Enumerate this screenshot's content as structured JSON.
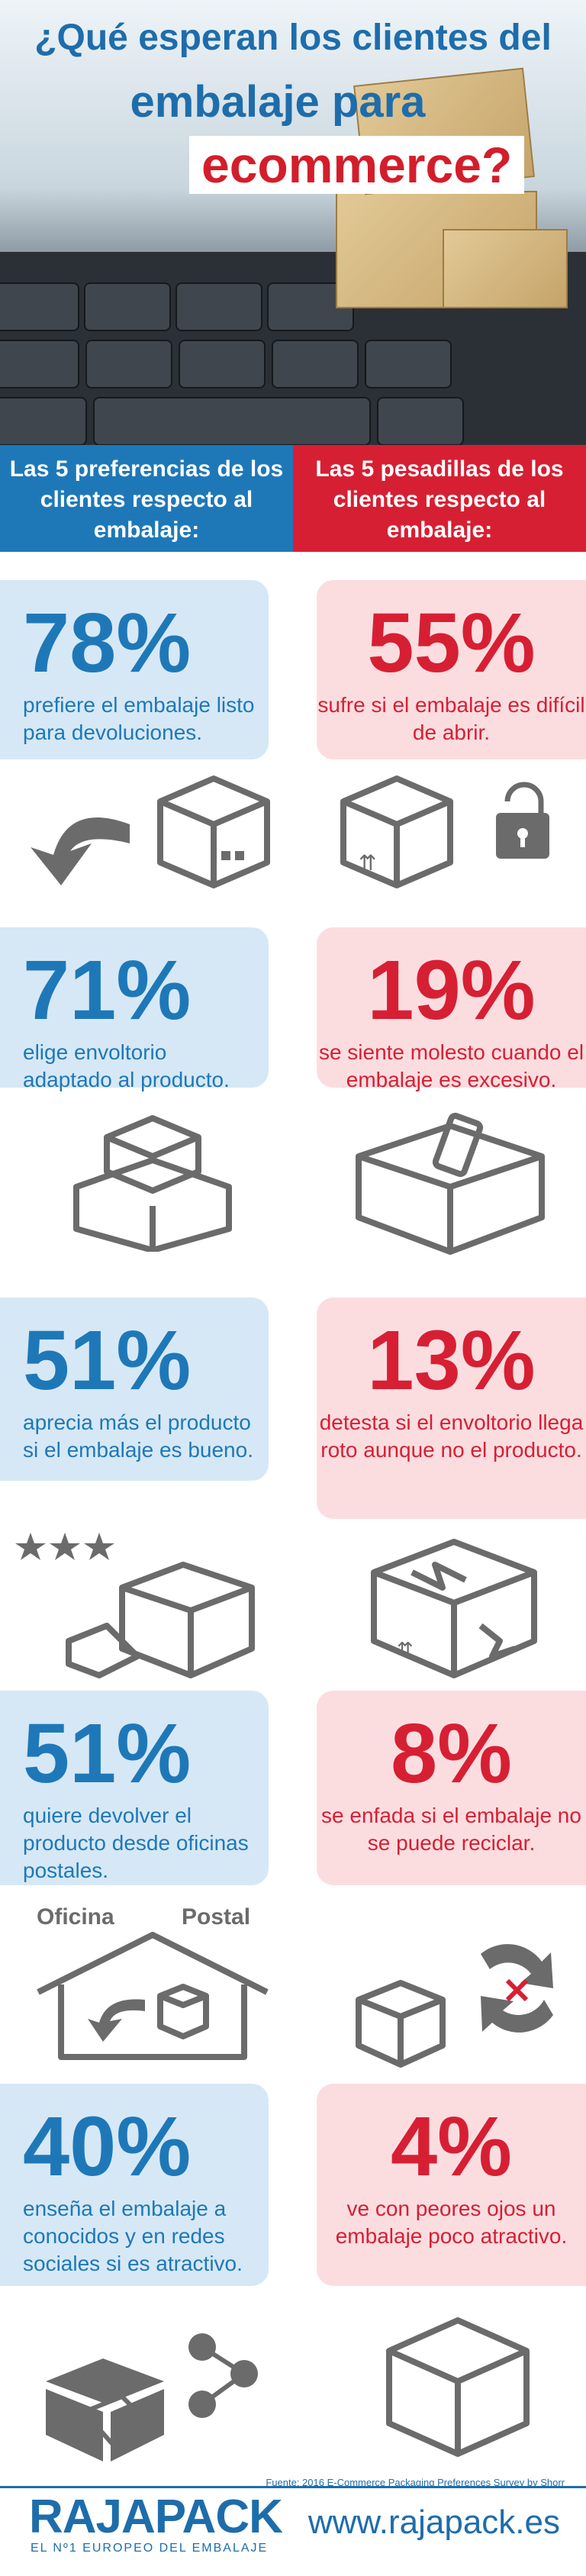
{
  "header": {
    "line1": "¿Qué esperan los clientes del",
    "line2": "embalaje para",
    "line3": "ecommerce?"
  },
  "columns": {
    "left_heading": "Las 5 preferencias de los clientes respecto al embalaje:",
    "right_heading": "Las 5 pesadillas de los clientes respecto al embalaje:"
  },
  "rows": [
    {
      "left": {
        "pct": "78%",
        "text": "prefiere el embalaje listo para devoluciones."
      },
      "right": {
        "pct": "55%",
        "text": "sufre si el embalaje es difícil de abrir."
      }
    },
    {
      "left": {
        "pct": "71%",
        "text": "elige envoltorio adaptado al producto."
      },
      "right": {
        "pct": "19%",
        "text": "se siente molesto cuando el embalaje es excesivo."
      }
    },
    {
      "left": {
        "pct": "51%",
        "text": "aprecia más el producto si el embalaje es bueno."
      },
      "right": {
        "pct": "13%",
        "text": "detesta si el envoltorio llega roto aunque no el producto."
      }
    },
    {
      "left": {
        "pct": "51%",
        "text": "quiere devolver el producto desde oficinas postales."
      },
      "right": {
        "pct": "8%",
        "text": "se enfada si el embalaje no se puede reciclar."
      }
    },
    {
      "left": {
        "pct": "40%",
        "text": "enseña el embalaje a conocidos y en redes sociales si es atractivo."
      },
      "right": {
        "pct": "4%",
        "text": "ve con peores ojos un embalaje poco atractivo."
      }
    }
  ],
  "icon_labels": {
    "office": "Oficina",
    "postal": "Postal"
  },
  "footer": {
    "source": "Fuente: 2016 E-Commerce Packaging Preferences Survey by Shorr",
    "logo": "RAJAPACK",
    "logo_sub": "EL Nº1 EUROPEO DEL EMBALAJE",
    "url": "www.rajapack.es"
  },
  "colors": {
    "blue": "#1e78b8",
    "red": "#d71f33",
    "light_blue": "#d6e8f5",
    "light_red": "#fbdde0",
    "icon_gray": "#6b6b6b"
  }
}
